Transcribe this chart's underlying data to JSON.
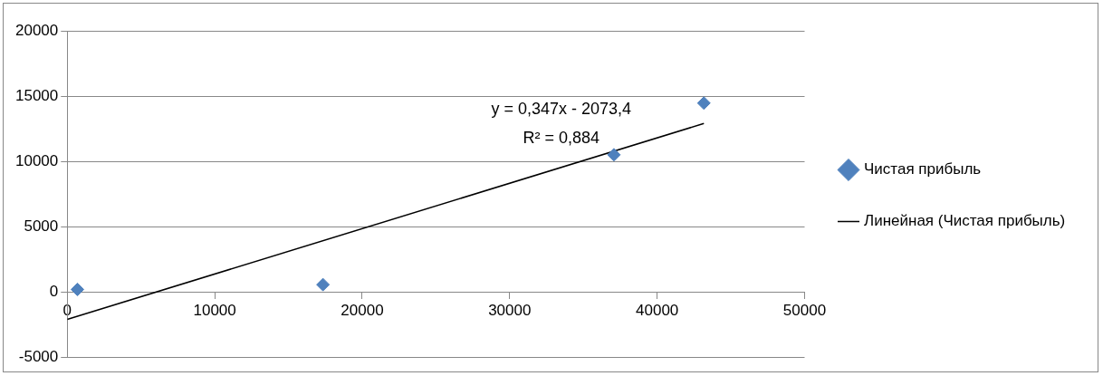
{
  "chart_data": {
    "type": "scatter",
    "series": [
      {
        "name": "Чистая прибыль",
        "color": "#4f81bd",
        "x": [
          690,
          17340,
          37070,
          43170
        ],
        "values": [
          220,
          590,
          10520,
          14470
        ],
        "marker": "diamond"
      },
      {
        "name": "Линейная (Чистая прибыль)",
        "type": "line",
        "color": "#000000",
        "x": [
          0,
          43170
        ],
        "values": [
          -2070,
          12910
        ],
        "marker": "none"
      }
    ],
    "xlim": [
      0,
      50000
    ],
    "xticks": [
      0,
      10000,
      20000,
      30000,
      40000,
      50000
    ],
    "ylim": [
      -5000,
      20000
    ],
    "yticks": [
      -5000,
      0,
      5000,
      10000,
      15000,
      20000
    ],
    "grid": "y",
    "legend": "right",
    "annotations": [
      "y = 0,347x - 2073,4",
      "R² = 0,884"
    ]
  }
}
